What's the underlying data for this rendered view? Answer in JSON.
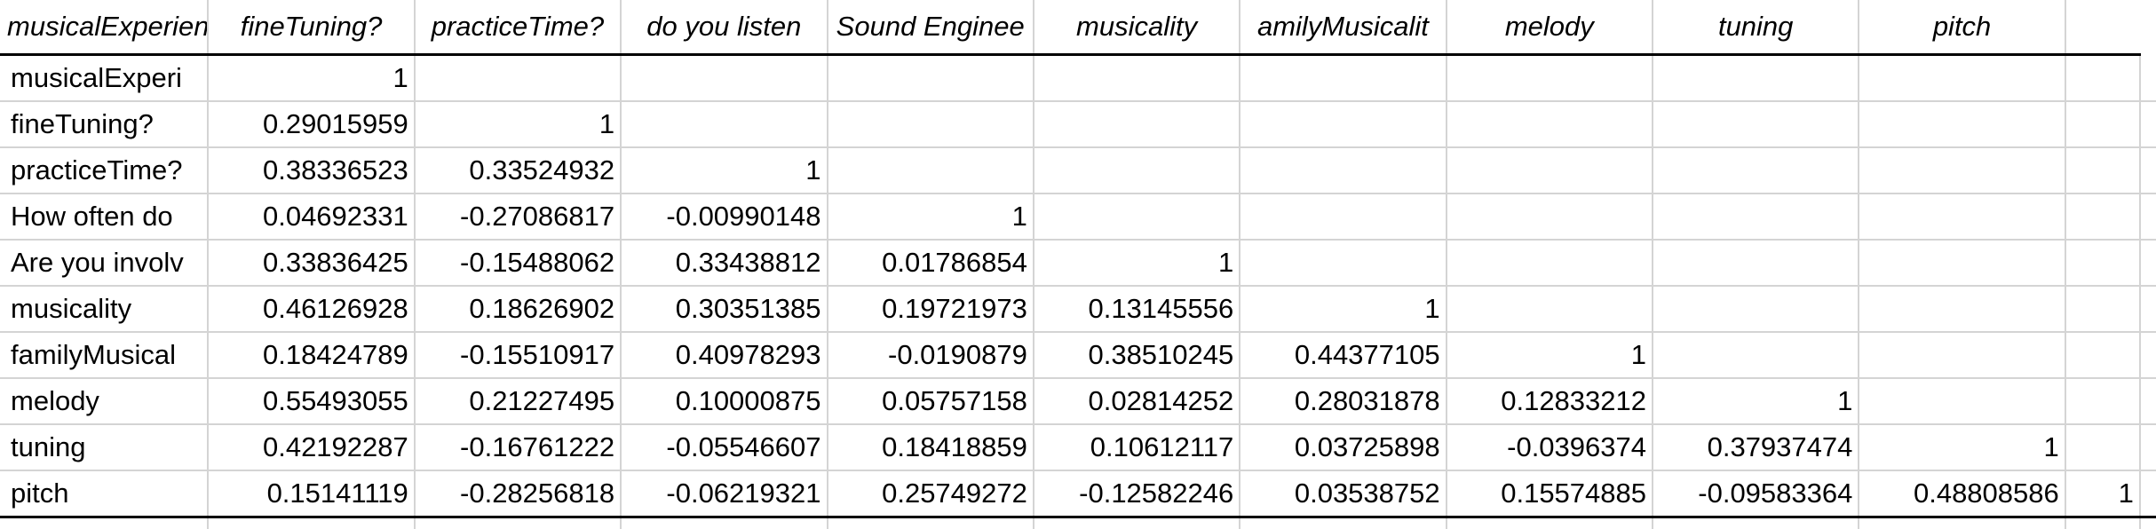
{
  "table": {
    "headers": [
      "musicalExperienc",
      "fineTuning?",
      "practiceTime?",
      "do you listen",
      "Sound Enginee",
      "musicality",
      "amilyMusicalit",
      "melody",
      "tuning",
      "pitch"
    ],
    "rows": [
      {
        "label": "musicalExperi",
        "values": [
          "1",
          "",
          "",
          "",
          "",
          "",
          "",
          "",
          "",
          ""
        ]
      },
      {
        "label": "fineTuning?",
        "values": [
          "0.29015959",
          "1",
          "",
          "",
          "",
          "",
          "",
          "",
          "",
          ""
        ]
      },
      {
        "label": "practiceTime?",
        "values": [
          "0.38336523",
          "0.33524932",
          "1",
          "",
          "",
          "",
          "",
          "",
          "",
          ""
        ]
      },
      {
        "label": "How often do",
        "values": [
          "0.04692331",
          "-0.27086817",
          "-0.00990148",
          "1",
          "",
          "",
          "",
          "",
          "",
          ""
        ]
      },
      {
        "label": "Are you involv",
        "values": [
          "0.33836425",
          "-0.15488062",
          "0.33438812",
          "0.01786854",
          "1",
          "",
          "",
          "",
          "",
          ""
        ]
      },
      {
        "label": "musicality",
        "values": [
          "0.46126928",
          "0.18626902",
          "0.30351385",
          "0.19721973",
          "0.13145556",
          "1",
          "",
          "",
          "",
          ""
        ]
      },
      {
        "label": "familyMusical",
        "values": [
          "0.18424789",
          "-0.15510917",
          "0.40978293",
          "-0.0190879",
          "0.38510245",
          "0.44377105",
          "1",
          "",
          "",
          ""
        ]
      },
      {
        "label": "melody",
        "values": [
          "0.55493055",
          "0.21227495",
          "0.10000875",
          "0.05757158",
          "0.02814252",
          "0.28031878",
          "0.12833212",
          "1",
          "",
          ""
        ]
      },
      {
        "label": "tuning",
        "values": [
          "0.42192287",
          "-0.16761222",
          "-0.05546607",
          "0.18418859",
          "0.10612117",
          "0.03725898",
          "-0.0396374",
          "0.37937474",
          "1",
          ""
        ]
      },
      {
        "label": "pitch",
        "values": [
          "0.15141119",
          "-0.28256818",
          "-0.06219321",
          "0.25749272",
          "-0.12582246",
          "0.03538752",
          "0.15574885",
          "-0.09583364",
          "0.48808586",
          "1"
        ]
      }
    ]
  }
}
